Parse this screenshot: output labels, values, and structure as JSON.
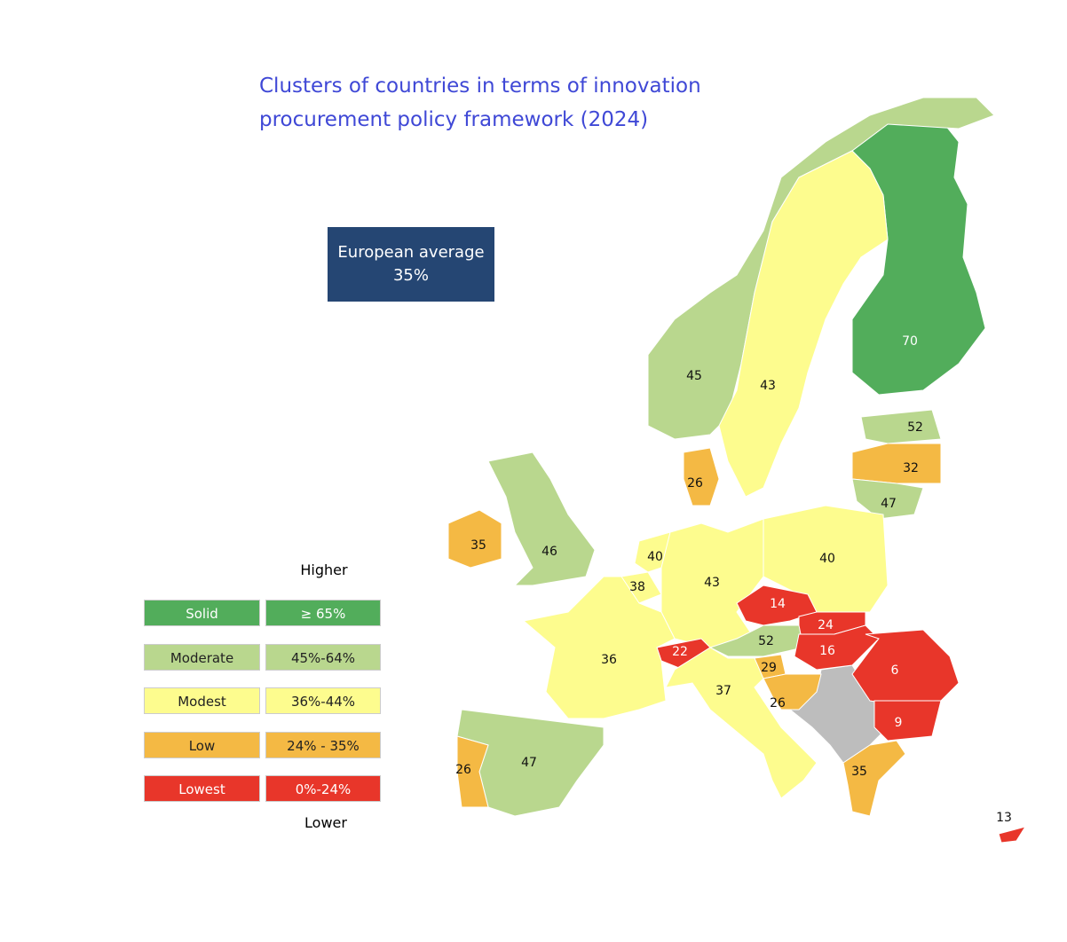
{
  "title": "Clusters of countries  in terms of innovation procurement policy framework (2024)",
  "average": {
    "label": "European average",
    "value": "35%"
  },
  "legend": {
    "top": "Higher",
    "bottom": "Lower",
    "rows": [
      {
        "name": "Solid",
        "range": "≥ 65%",
        "color": "#52ad5b"
      },
      {
        "name": "Moderate",
        "range": "45%-64%",
        "color": "#b9d78e"
      },
      {
        "name": "Modest",
        "range": "36%-44%",
        "color": "#fdfc8e"
      },
      {
        "name": "Low",
        "range": "24% - 35%",
        "color": "#f4b944"
      },
      {
        "name": "Lowest",
        "range": "0%-24%",
        "color": "#e8362a"
      }
    ]
  },
  "regions": [
    {
      "value": 70,
      "color": "#52ad5b"
    },
    {
      "value": 45,
      "color": "#b9d78e"
    },
    {
      "value": 43,
      "color": "#fdfc8e"
    },
    {
      "value": 52,
      "color": "#b9d78e"
    },
    {
      "value": 32,
      "color": "#f4b944"
    },
    {
      "value": 47,
      "color": "#b9d78e"
    },
    {
      "value": 26,
      "color": "#f4b944"
    },
    {
      "value": 35,
      "color": "#f4b944"
    },
    {
      "value": 46,
      "color": "#b9d78e"
    },
    {
      "value": 40,
      "color": "#fdfc8e"
    },
    {
      "value": 38,
      "color": "#fdfc8e"
    },
    {
      "value": 43,
      "color": "#fdfc8e"
    },
    {
      "value": 40,
      "color": "#fdfc8e"
    },
    {
      "value": 14,
      "color": "#e8362a"
    },
    {
      "value": 24,
      "color": "#e8362a"
    },
    {
      "value": 52,
      "color": "#b9d78e"
    },
    {
      "value": 16,
      "color": "#e8362a"
    },
    {
      "value": 6,
      "color": "#e8362a"
    },
    {
      "value": 22,
      "color": "#e8362a"
    },
    {
      "value": 36,
      "color": "#fdfc8e"
    },
    {
      "value": 29,
      "color": "#f4b944"
    },
    {
      "value": 37,
      "color": "#fdfc8e"
    },
    {
      "value": 26,
      "color": "#f4b944"
    },
    {
      "value": 9,
      "color": "#e8362a"
    },
    {
      "value": 35,
      "color": "#f4b944"
    },
    {
      "value": 47,
      "color": "#b9d78e"
    },
    {
      "value": 26,
      "color": "#f4b944"
    },
    {
      "value": 13,
      "color": "#e8362a"
    }
  ]
}
